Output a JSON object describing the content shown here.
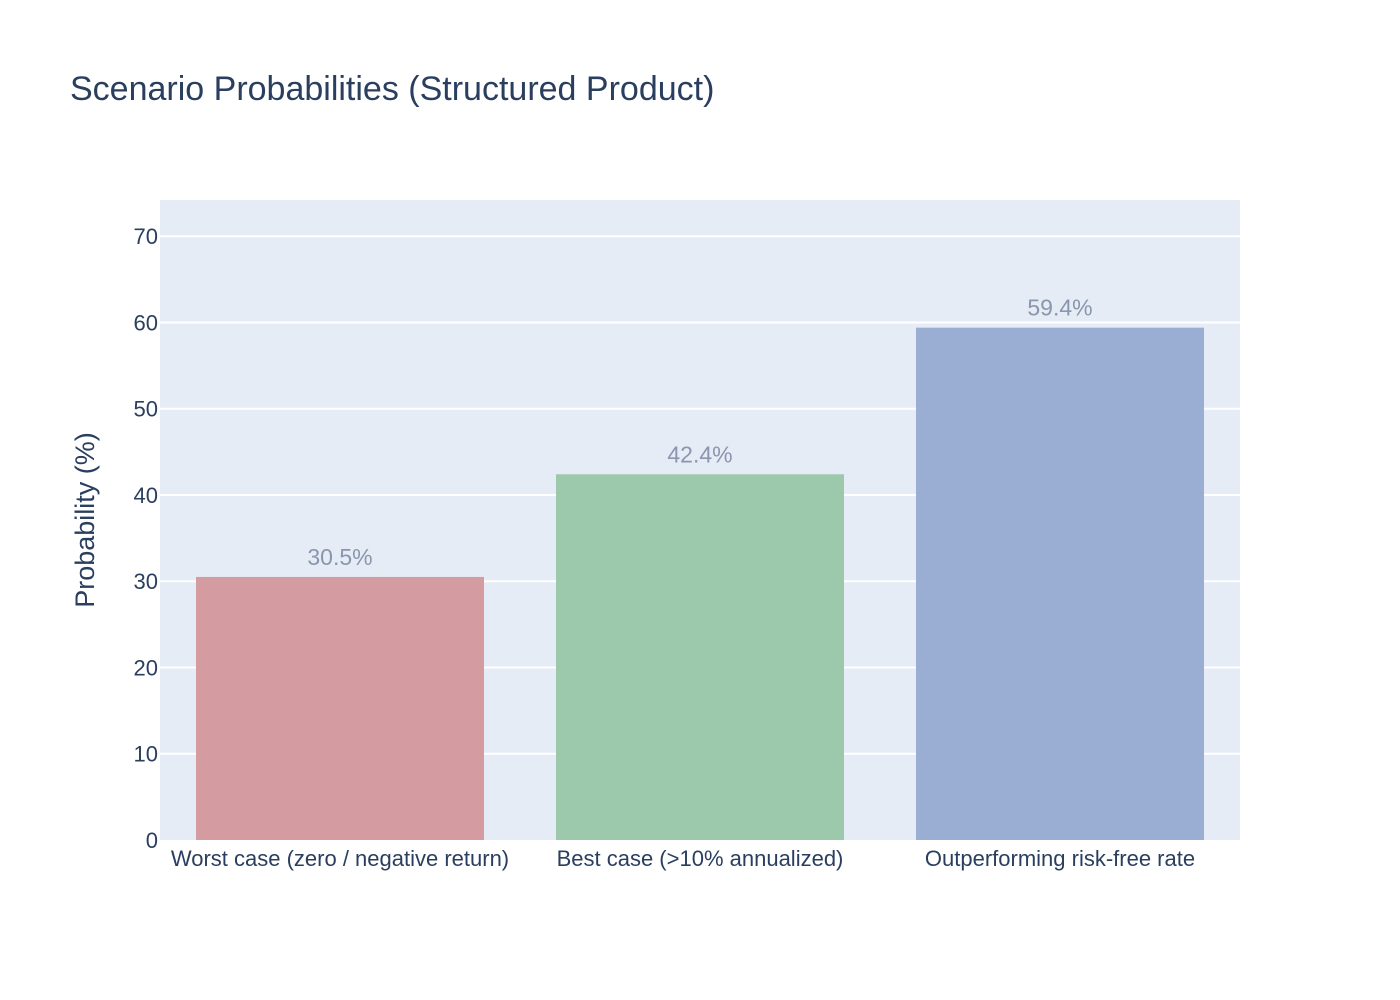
{
  "chart_data": {
    "type": "bar",
    "title": "Scenario Probabilities (Structured Product)",
    "xlabel": "",
    "ylabel": "Probability (%)",
    "categories": [
      "Worst case (zero / negative return)",
      "Best case (>10% annualized)",
      "Outperforming risk-free rate"
    ],
    "values": [
      30.5,
      42.4,
      59.4
    ],
    "data_labels": [
      "30.5%",
      "42.4%",
      "59.4%"
    ],
    "colors": [
      "#d49ca1",
      "#9cc9ac",
      "#9aaed4"
    ],
    "ylim": [
      0,
      74.2
    ],
    "yticks": [
      0,
      10,
      20,
      30,
      40,
      50,
      60,
      70
    ],
    "grid": true,
    "legend": "none",
    "plot_background": "#e5ecf6",
    "grid_color": "#ffffff"
  }
}
